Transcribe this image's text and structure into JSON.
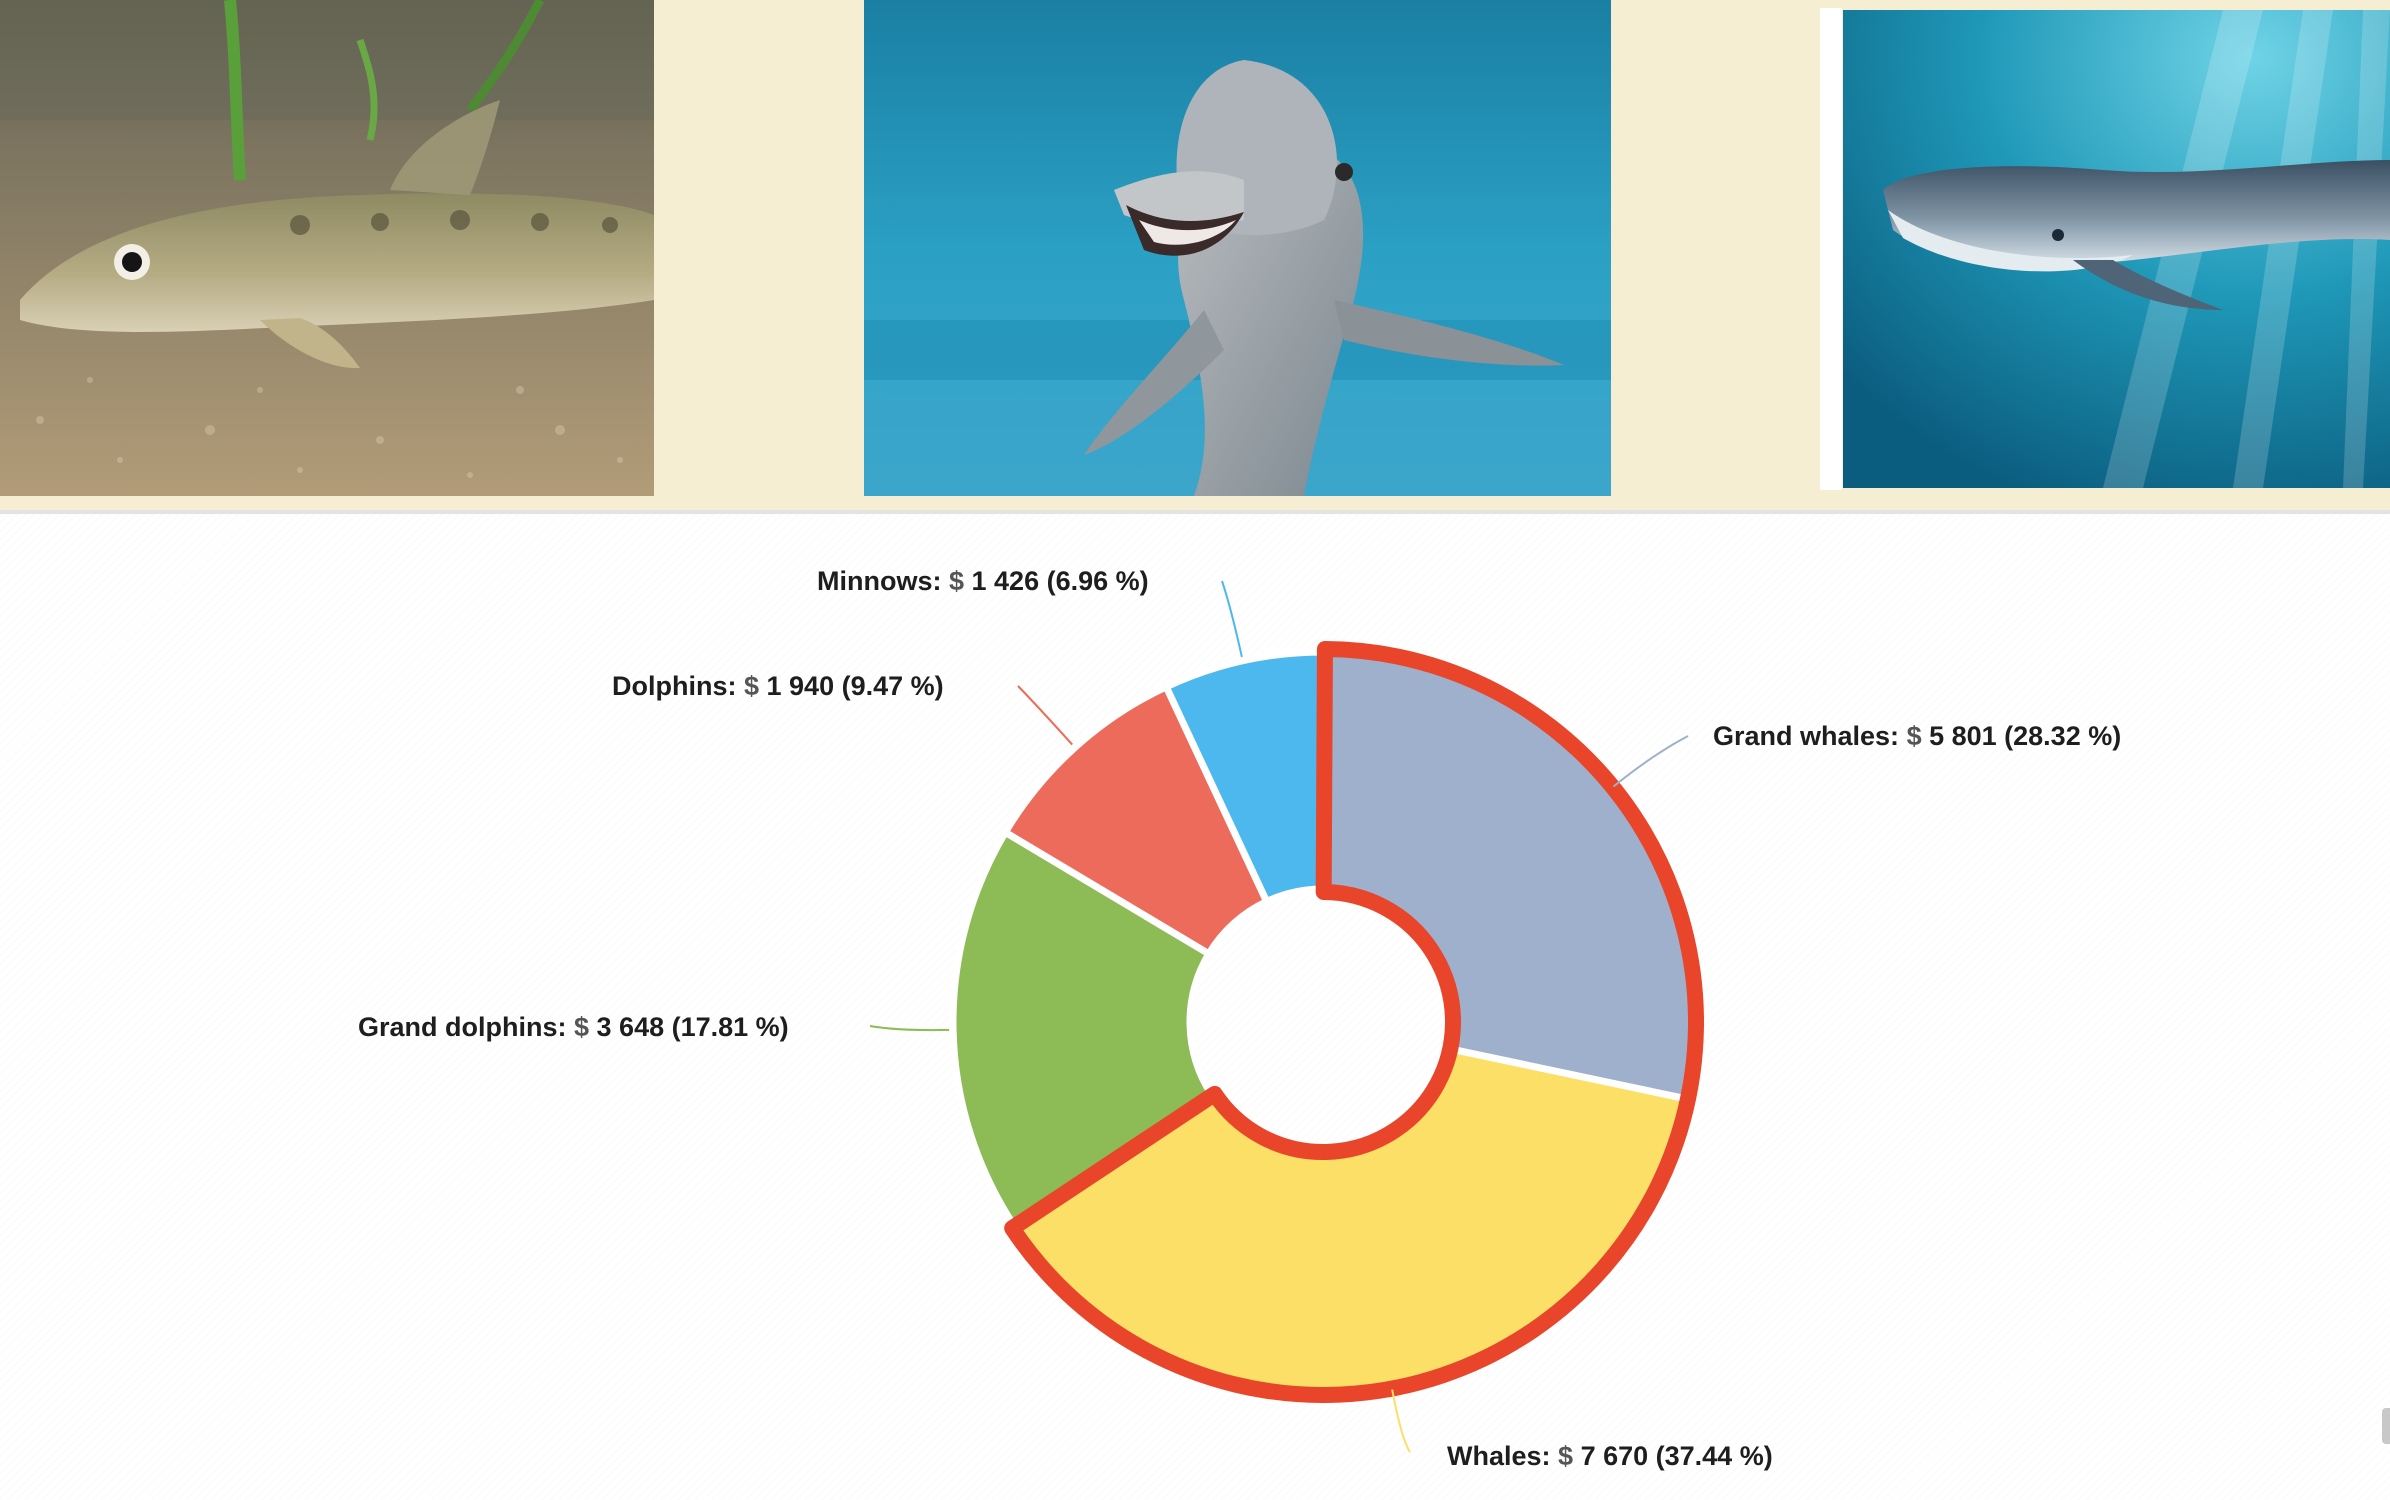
{
  "images": {
    "fish": "loach-fish-photo",
    "dolphin": "bottlenose-dolphin-photo",
    "whale": "blue-whale-photo"
  },
  "chart_data": {
    "type": "pie",
    "style": "donut",
    "currency_symbol": "$",
    "highlighted_slices": [
      "Grand whales",
      "Whales"
    ],
    "highlight_color": "#e8452a",
    "slices": [
      {
        "label": "Grand whales",
        "value": 5801,
        "value_text": "5 801",
        "percent_text": "28.32 %",
        "color": "#9fb0cc"
      },
      {
        "label": "Whales",
        "value": 7670,
        "value_text": "7 670",
        "percent_text": "37.44 %",
        "color": "#fbdf67"
      },
      {
        "label": "Grand dolphins",
        "value": 3648,
        "value_text": "3 648",
        "percent_text": "17.81 %",
        "color": "#8dbb55"
      },
      {
        "label": "Dolphins",
        "value": 1940,
        "value_text": "1 940",
        "percent_text": "9.47 %",
        "color": "#ec6b5a"
      },
      {
        "label": "Minnows",
        "value": 1426,
        "value_text": "1 426",
        "percent_text": "6.96 %",
        "color": "#4db8ee"
      }
    ]
  }
}
